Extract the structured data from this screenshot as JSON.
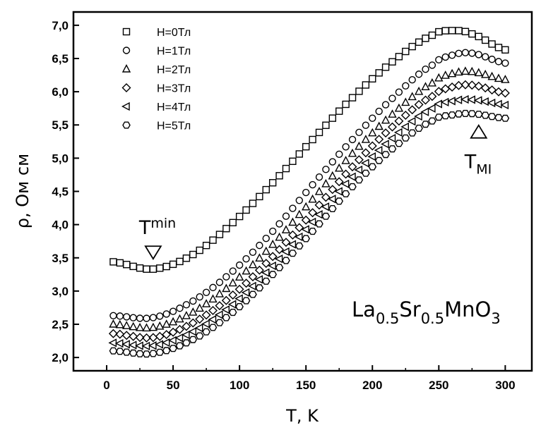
{
  "chart_data": {
    "type": "scatter",
    "xlabel": "T, K",
    "ylabel": "ρ, Ом см",
    "xlim": [
      -25,
      320
    ],
    "ylim": [
      1.8,
      7.2
    ],
    "x_ticks": [
      "0",
      "50",
      "100",
      "150",
      "200",
      "250",
      "300"
    ],
    "y_ticks": [
      "2,0",
      "2,5",
      "3,0",
      "3,5",
      "4,0",
      "4,5",
      "5,0",
      "5,5",
      "6,0",
      "6,5",
      "7,0"
    ],
    "grid": false,
    "legend_position": "top-left",
    "x": [
      5,
      35,
      65,
      95,
      125,
      155,
      185,
      215,
      245,
      260,
      275,
      300
    ],
    "series": [
      {
        "name": "H=0Тл",
        "marker": "square",
        "values": [
          3.44,
          3.33,
          3.55,
          4.03,
          4.63,
          5.28,
          5.91,
          6.45,
          6.85,
          6.92,
          6.87,
          6.63
        ]
      },
      {
        "name": "H=1Тл",
        "marker": "circle",
        "values": [
          2.63,
          2.6,
          2.85,
          3.3,
          3.9,
          4.6,
          5.28,
          5.9,
          6.4,
          6.55,
          6.58,
          6.43
        ]
      },
      {
        "name": "H=2Тл",
        "marker": "triangle",
        "values": [
          2.5,
          2.45,
          2.68,
          3.12,
          3.7,
          4.38,
          5.07,
          5.66,
          6.13,
          6.27,
          6.3,
          6.18
        ]
      },
      {
        "name": "H=3Тл",
        "marker": "diamond",
        "values": [
          2.36,
          2.3,
          2.52,
          2.94,
          3.52,
          4.18,
          4.87,
          5.47,
          5.93,
          6.07,
          6.1,
          5.98
        ]
      },
      {
        "name": "H=4Тл",
        "marker": "triangle-left",
        "values": [
          2.22,
          2.18,
          2.39,
          2.8,
          3.38,
          4.04,
          4.72,
          5.3,
          5.75,
          5.86,
          5.88,
          5.8
        ]
      },
      {
        "name": "H=5Тл",
        "marker": "hexagon",
        "values": [
          2.1,
          2.06,
          2.27,
          2.68,
          3.25,
          3.9,
          4.57,
          5.14,
          5.56,
          5.65,
          5.67,
          5.6
        ]
      }
    ],
    "annotations": [
      {
        "main": "T",
        "sub": "min",
        "marker": "triangle-down",
        "x": 35,
        "y": 3.58
      },
      {
        "main": "T",
        "sub": "MI",
        "marker": "triangle-up",
        "x": 280,
        "y": 5.4
      }
    ],
    "formula": [
      {
        "text": "La",
        "sub": false
      },
      {
        "text": "0.5",
        "sub": true
      },
      {
        "text": "Sr",
        "sub": false
      },
      {
        "text": "0.5",
        "sub": true
      },
      {
        "text": "MnO",
        "sub": false
      },
      {
        "text": "3",
        "sub": true
      }
    ]
  }
}
